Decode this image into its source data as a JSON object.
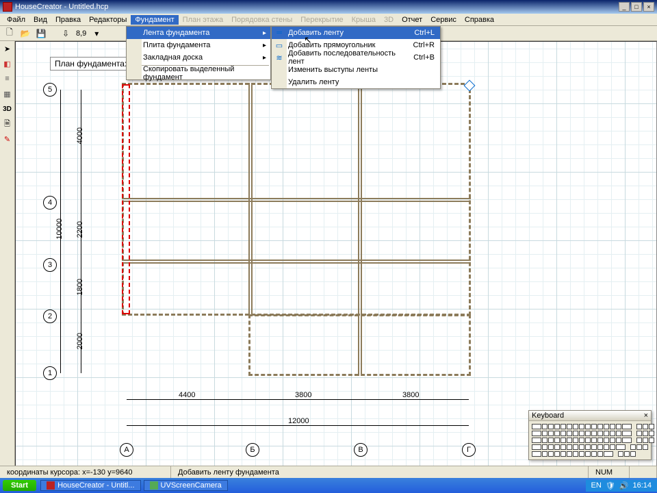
{
  "title": "HouseCreator - Untitled.hcp",
  "menubar": [
    "Файл",
    "Вид",
    "Правка",
    "Редакторы",
    "Фундамент",
    "План этажа",
    "Порядовка стены",
    "Перекрытие",
    "Крыша",
    "3D",
    "Отчет",
    "Сервис",
    "Справка"
  ],
  "menubar_active_index": 4,
  "menubar_disabled": [
    5,
    6,
    7,
    8,
    9
  ],
  "toolbar_scale": "8,9",
  "menu1": {
    "items": [
      {
        "label": "Лента фундамента",
        "arrow": true,
        "hl": true
      },
      {
        "label": "Плита фундамента",
        "arrow": true
      },
      {
        "label": "Закладная доска",
        "arrow": true
      },
      {
        "sep": true
      },
      {
        "label": "Скопировать выделенный фундамент"
      }
    ]
  },
  "menu2": {
    "items": [
      {
        "label": "Добавить ленту",
        "shortcut": "Ctrl+L",
        "hl": true
      },
      {
        "label": "Добавить прямоугольник",
        "shortcut": "Ctrl+R"
      },
      {
        "label": "Добавить последовательность лент",
        "shortcut": "Ctrl+B"
      },
      {
        "label": "Изменить выступы ленты"
      },
      {
        "label": "Удалить ленту"
      }
    ]
  },
  "plan_label": "План фундамента:",
  "axis_labels_v": [
    "5",
    "4",
    "3",
    "2",
    "1"
  ],
  "axis_labels_h": [
    "А",
    "Б",
    "В",
    "Г"
  ],
  "dims_v": [
    "4000",
    "2200",
    "1800",
    "2000",
    "10000"
  ],
  "dims_h": [
    "4400",
    "3800",
    "3800",
    "12000"
  ],
  "status": {
    "coords": "координаты курсора: x=-130 y=9640",
    "hint": "Добавить ленту фундамента",
    "num": "NUM"
  },
  "taskbar": {
    "start": "Start",
    "tasks": [
      "HouseCreator - Untitl...",
      "UVScreenCamera"
    ],
    "lang": "EN",
    "time": "16:14"
  },
  "kbd_title": "Keyboard",
  "colors": {
    "highlight": "#316ac5",
    "wall": "#8c7b5a",
    "sel": "#d00000"
  }
}
